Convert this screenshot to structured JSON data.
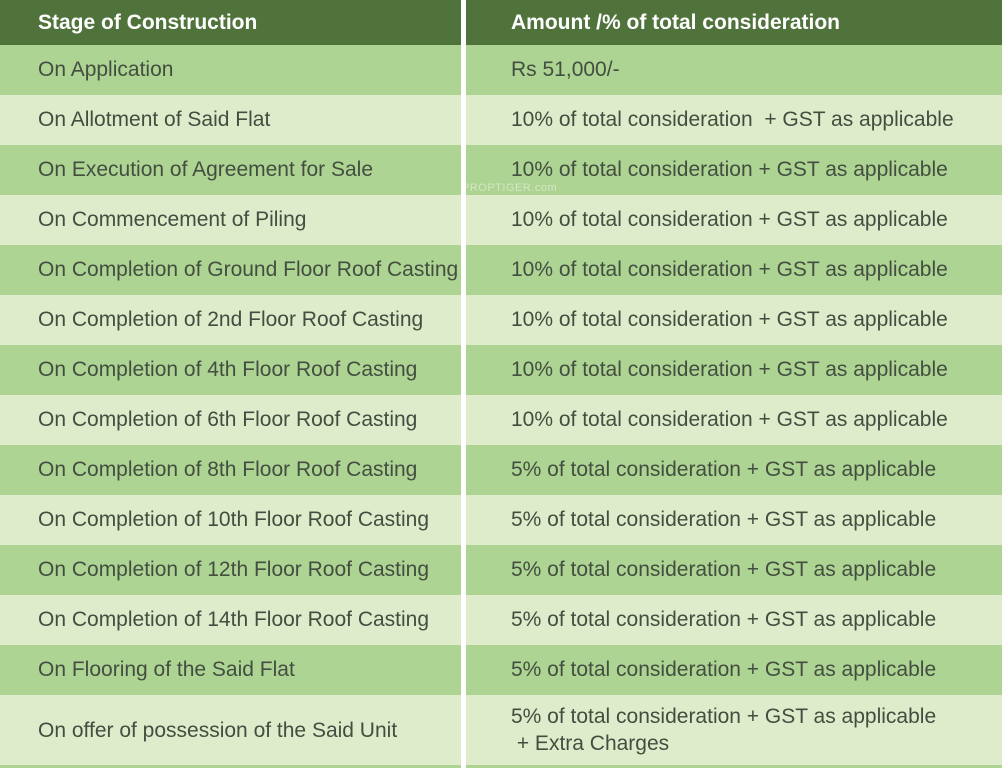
{
  "watermark": "PROPTIGER.com",
  "colors": {
    "header_bg": "#50733c",
    "header_text": "#ffffff",
    "row_medium_bg": "#aed494",
    "row_light_bg": "#dfeccb",
    "body_text": "#434e40",
    "column_divider": "#ffffff"
  },
  "table": {
    "headers": {
      "stage": "Stage of Construction",
      "amount": "Amount /% of total consideration"
    },
    "rows": [
      {
        "stage": "On Application",
        "amount": "Rs 51,000/-"
      },
      {
        "stage": "On Allotment of Said Flat",
        "amount": "10% of total consideration  + GST as applicable"
      },
      {
        "stage": "On Execution of Agreement for Sale",
        "amount": "10% of total consideration + GST as applicable"
      },
      {
        "stage": "On Commencement of Piling",
        "amount": "10% of total consideration + GST as applicable"
      },
      {
        "stage": "On Completion of Ground Floor Roof Casting",
        "amount": "10% of total consideration + GST as applicable"
      },
      {
        "stage": "On Completion of 2nd Floor Roof Casting",
        "amount": "10% of total consideration + GST as applicable"
      },
      {
        "stage": "On Completion of 4th Floor Roof Casting",
        "amount": "10% of total consideration + GST as applicable"
      },
      {
        "stage": "On Completion of 6th Floor Roof Casting",
        "amount": "10% of total consideration + GST as applicable"
      },
      {
        "stage": "On Completion of 8th Floor Roof Casting",
        "amount": "5% of total consideration + GST as applicable"
      },
      {
        "stage": "On Completion of 10th Floor Roof Casting",
        "amount": "5% of total consideration + GST as applicable"
      },
      {
        "stage": "On Completion of 12th Floor Roof Casting",
        "amount": "5% of total consideration + GST as applicable"
      },
      {
        "stage": "On Completion of 14th Floor Roof Casting",
        "amount": "5% of total consideration + GST as applicable"
      },
      {
        "stage": "On Flooring of the Said Flat",
        "amount": "5% of total consideration + GST as applicable"
      },
      {
        "stage": "On offer of possession of the Said Unit",
        "amount": "5% of total consideration + GST as applicable\n + Extra Charges"
      }
    ]
  }
}
